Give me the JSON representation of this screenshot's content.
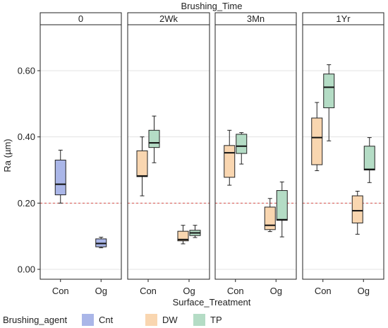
{
  "chart_data": {
    "type": "boxplot",
    "facet_title": "Brushing_Time",
    "facets": [
      "0",
      "2Wk",
      "3Mn",
      "1Yr"
    ],
    "categories": [
      "Con",
      "Og"
    ],
    "xlabel": "Surface_Treatment",
    "ylabel": "Ra (µm)",
    "ylim": [
      -0.02,
      0.74
    ],
    "yticks": [
      0.0,
      0.2,
      0.4,
      0.6
    ],
    "ytick_labels": [
      "0.00",
      "0.20",
      "0.40",
      "0.60"
    ],
    "reference_line": 0.2,
    "legend": {
      "title": "Brushing_agent",
      "placement": "bottom",
      "entries": [
        {
          "name": "Cnt",
          "color": "#aab6e8"
        },
        {
          "name": "DW",
          "color": "#f9d6b0"
        },
        {
          "name": "TP",
          "color": "#b4dcc5"
        }
      ]
    },
    "boxes": [
      {
        "facet": "0",
        "category": "Con",
        "agent": "Cnt",
        "min": 0.2,
        "q1": 0.225,
        "median": 0.257,
        "q3": 0.33,
        "max": 0.36
      },
      {
        "facet": "0",
        "category": "Og",
        "agent": "Cnt",
        "min": 0.065,
        "q1": 0.068,
        "median": 0.078,
        "q3": 0.092,
        "max": 0.097
      },
      {
        "facet": "2Wk",
        "category": "Con",
        "agent": "DW",
        "min": 0.222,
        "q1": 0.28,
        "median": 0.282,
        "q3": 0.358,
        "max": 0.4
      },
      {
        "facet": "2Wk",
        "category": "Con",
        "agent": "TP",
        "min": 0.322,
        "q1": 0.368,
        "median": 0.382,
        "q3": 0.42,
        "max": 0.463
      },
      {
        "facet": "2Wk",
        "category": "Og",
        "agent": "DW",
        "min": 0.077,
        "q1": 0.086,
        "median": 0.09,
        "q3": 0.115,
        "max": 0.133
      },
      {
        "facet": "2Wk",
        "category": "Og",
        "agent": "TP",
        "min": 0.096,
        "q1": 0.102,
        "median": 0.11,
        "q3": 0.118,
        "max": 0.133
      },
      {
        "facet": "3Mn",
        "category": "Con",
        "agent": "DW",
        "min": 0.254,
        "q1": 0.278,
        "median": 0.352,
        "q3": 0.374,
        "max": 0.42
      },
      {
        "facet": "3Mn",
        "category": "Con",
        "agent": "TP",
        "min": 0.318,
        "q1": 0.35,
        "median": 0.372,
        "q3": 0.408,
        "max": 0.413
      },
      {
        "facet": "3Mn",
        "category": "Og",
        "agent": "DW",
        "min": 0.114,
        "q1": 0.12,
        "median": 0.133,
        "q3": 0.188,
        "max": 0.214
      },
      {
        "facet": "3Mn",
        "category": "Og",
        "agent": "TP",
        "min": 0.098,
        "q1": 0.148,
        "median": 0.15,
        "q3": 0.238,
        "max": 0.264
      },
      {
        "facet": "1Yr",
        "category": "Con",
        "agent": "DW",
        "min": 0.298,
        "q1": 0.316,
        "median": 0.398,
        "q3": 0.457,
        "max": 0.504
      },
      {
        "facet": "1Yr",
        "category": "Con",
        "agent": "TP",
        "min": 0.388,
        "q1": 0.488,
        "median": 0.55,
        "q3": 0.59,
        "max": 0.618
      },
      {
        "facet": "1Yr",
        "category": "Og",
        "agent": "DW",
        "min": 0.106,
        "q1": 0.14,
        "median": 0.177,
        "q3": 0.222,
        "max": 0.236
      },
      {
        "facet": "1Yr",
        "category": "Og",
        "agent": "TP",
        "min": 0.262,
        "q1": 0.3,
        "median": 0.302,
        "q3": 0.372,
        "max": 0.398
      }
    ]
  }
}
